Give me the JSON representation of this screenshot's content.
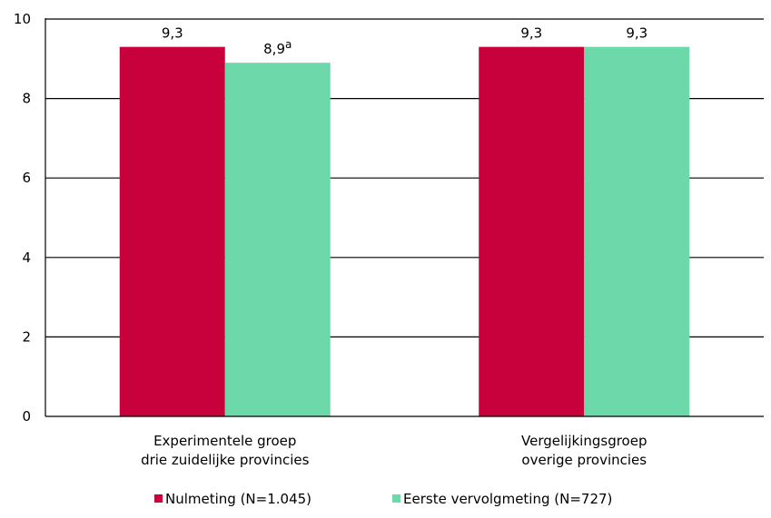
{
  "chart_data": {
    "type": "bar",
    "categories": [
      [
        "Experimentele groep",
        "drie zuidelijke provincies"
      ],
      [
        "Vergelijkingsgroep",
        "overige provincies"
      ]
    ],
    "series": [
      {
        "name": "Nulmeting (N=1.045)",
        "color": "#c8003c",
        "values": [
          9.3,
          9.3
        ],
        "labels": [
          "9,3",
          "9,3"
        ],
        "superscripts": [
          "",
          ""
        ]
      },
      {
        "name": "Eerste vervolgmeting (N=727)",
        "color": "#6dd9aa",
        "values": [
          8.9,
          9.3
        ],
        "labels": [
          "8,9",
          "9,3"
        ],
        "superscripts": [
          "a",
          ""
        ]
      }
    ],
    "ylim": [
      0,
      10
    ],
    "yticks": [
      0,
      2,
      4,
      6,
      8,
      10
    ],
    "grid": true,
    "legend": "bottom"
  }
}
